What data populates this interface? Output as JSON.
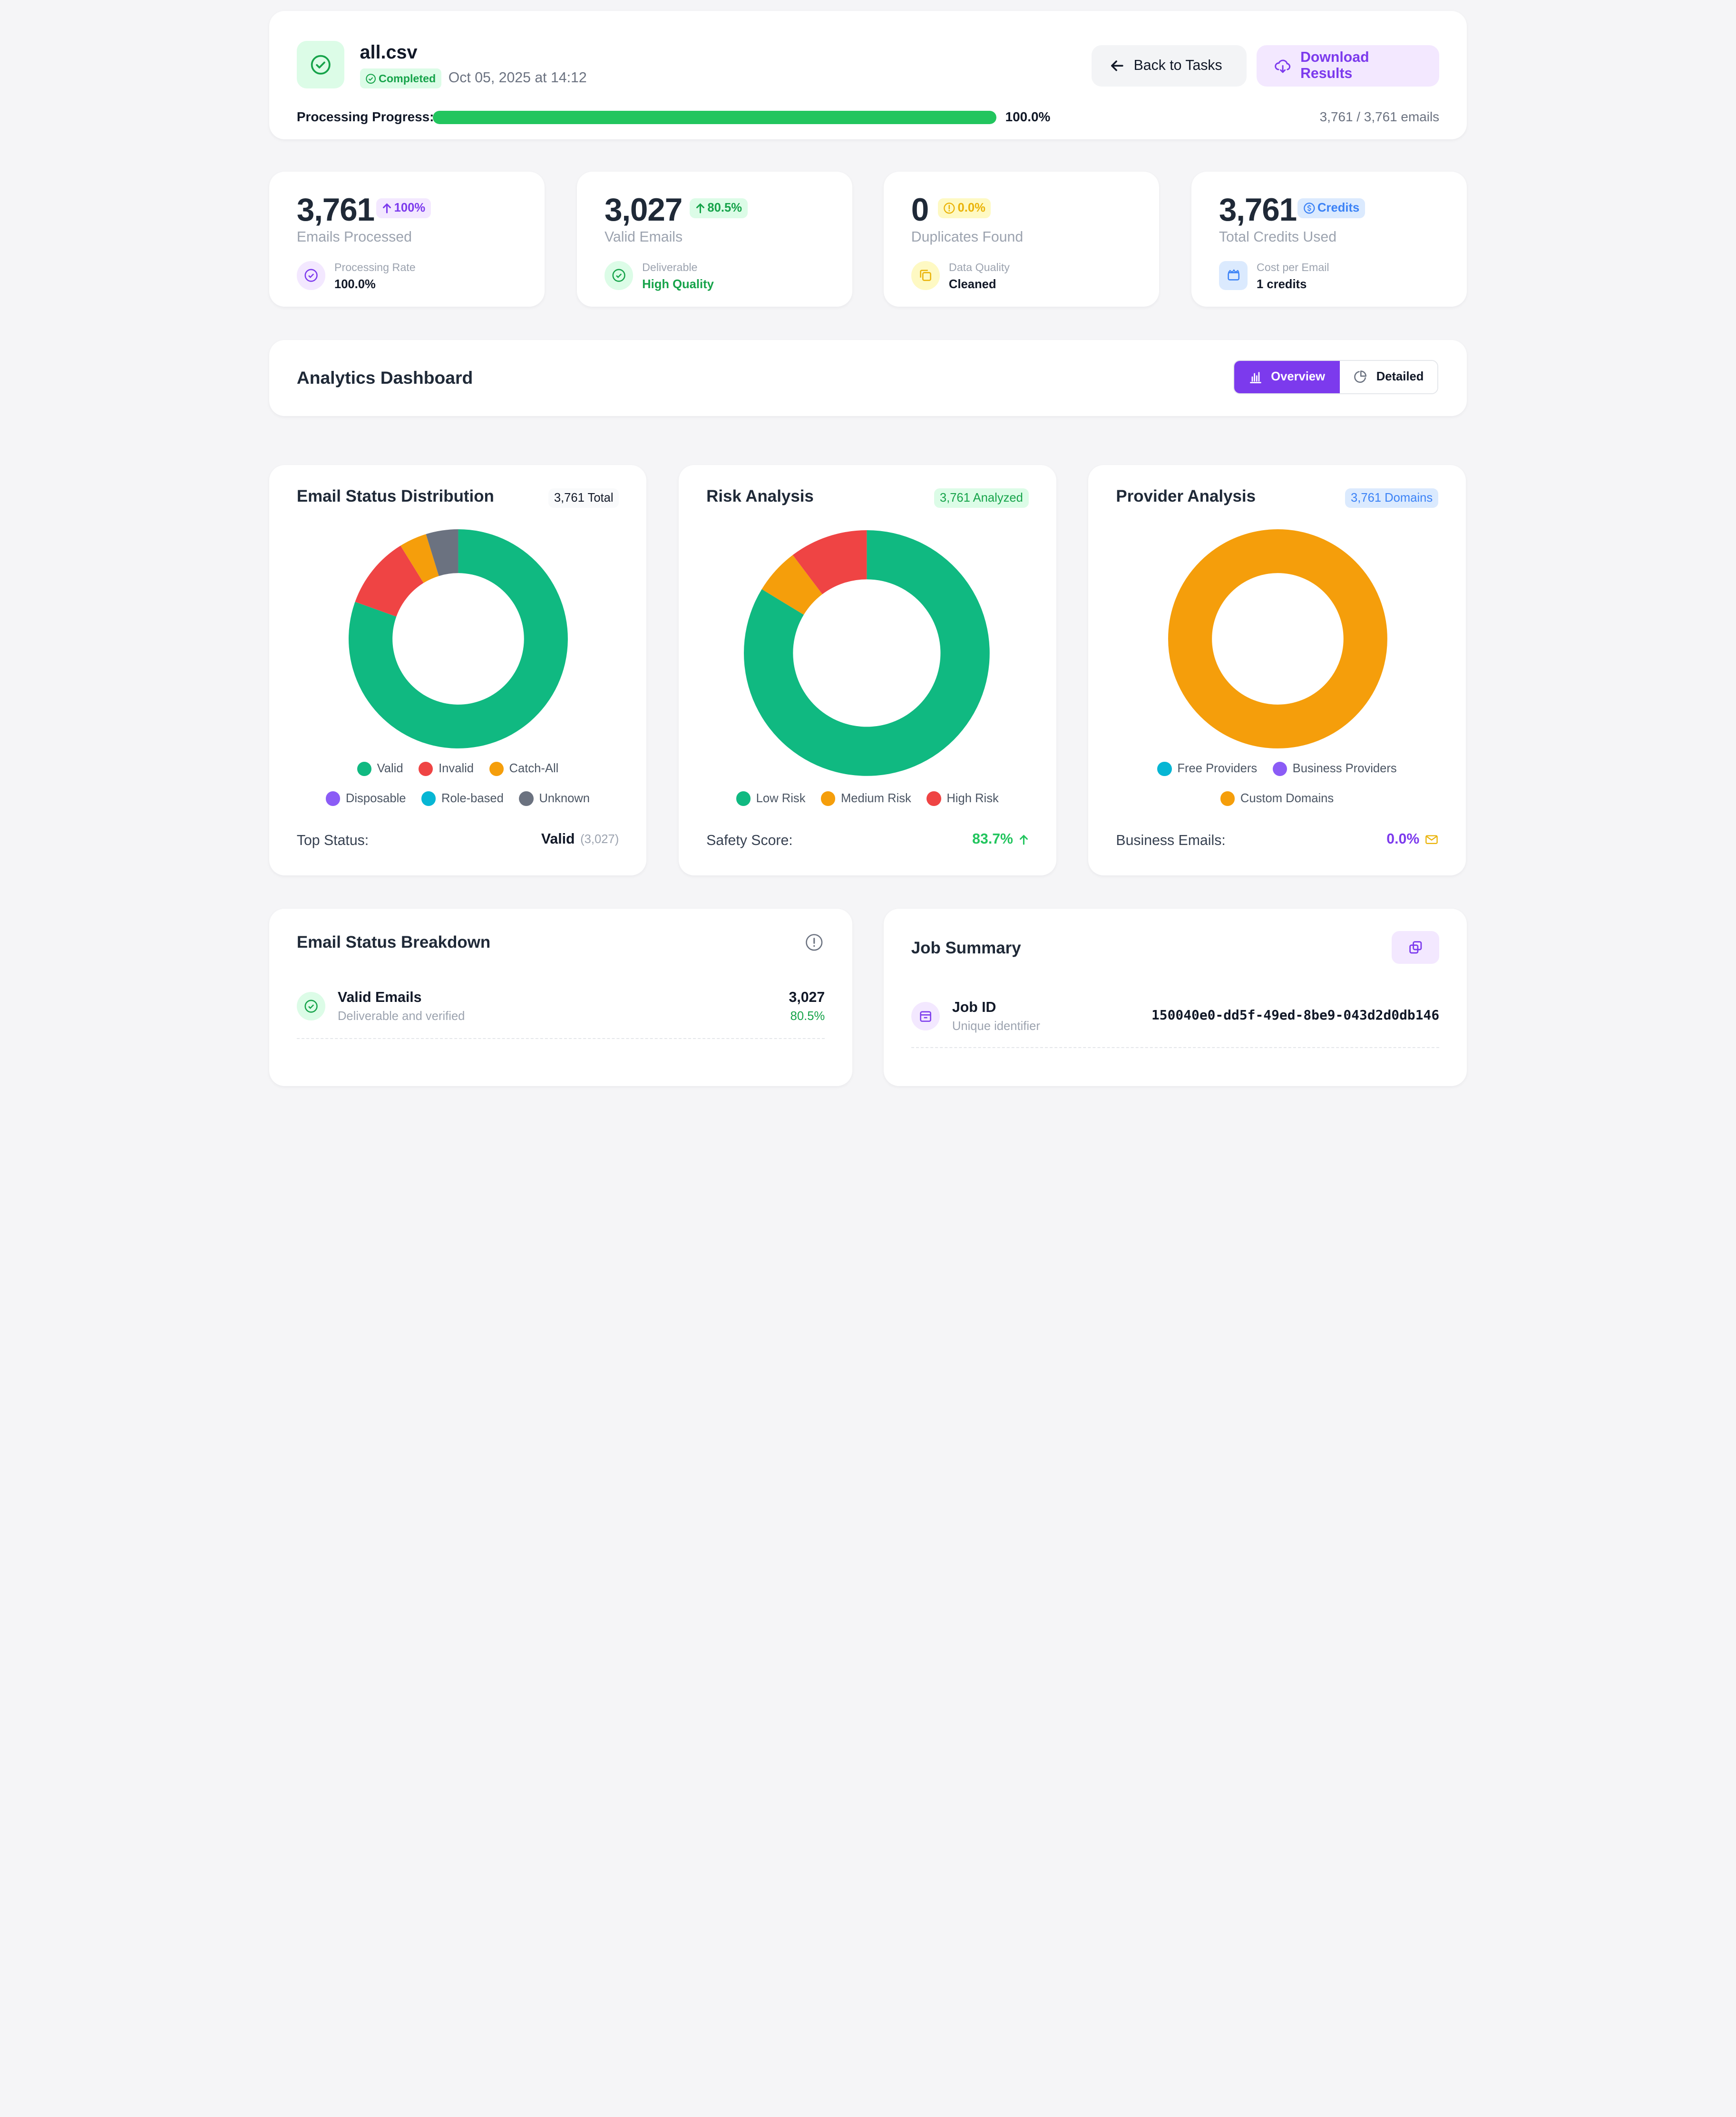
{
  "header": {
    "file_name": "all.csv",
    "status": "Completed",
    "date": "Oct 05, 2025 at 14:12",
    "back_label": "Back to Tasks",
    "download_label": "Download Results",
    "progress_label": "Processing Progress:",
    "progress": 1.0,
    "progress_text": "100.0%",
    "count_text": "3,761 / 3,761 emails"
  },
  "stats": [
    {
      "value": "3,761",
      "badge": "100%",
      "label": "Emails Processed",
      "sub_label": "Processing Rate",
      "sub_value": "100.0%"
    },
    {
      "value": "3,027",
      "badge": "80.5%",
      "label": "Valid Emails",
      "sub_label": "Deliverable",
      "sub_value": "High Quality"
    },
    {
      "value": "0",
      "badge": "0.0%",
      "label": "Duplicates Found",
      "sub_label": "Data Quality",
      "sub_value": "Cleaned"
    },
    {
      "value": "3,761",
      "badge": "Credits",
      "label": "Total Credits Used",
      "sub_label": "Cost per Email",
      "sub_value": "1 credits"
    }
  ],
  "analytics": {
    "title": "Analytics Dashboard",
    "tab_overview": "Overview",
    "tab_detailed": "Detailed"
  },
  "status_chart": {
    "title": "Email Status Distribution",
    "badge": "3,761 Total",
    "legend": [
      "Valid",
      "Invalid",
      "Catch-All",
      "Disposable",
      "Role-based",
      "Unknown"
    ],
    "footer_label": "Top Status:",
    "footer_value": "Valid",
    "footer_count": "(3,027)"
  },
  "risk_chart": {
    "title": "Risk Analysis",
    "badge": "3,761 Analyzed",
    "legend": [
      "Low Risk",
      "Medium Risk",
      "High Risk"
    ],
    "footer_label": "Safety Score:",
    "footer_value": "83.7%"
  },
  "provider_chart": {
    "title": "Provider Analysis",
    "badge": "3,761 Domains",
    "legend": [
      "Free Providers",
      "Business Providers",
      "Custom Domains"
    ],
    "footer_label": "Business Emails:",
    "footer_value": "0.0%"
  },
  "chart_data": [
    {
      "type": "pie",
      "title": "Email Status Distribution",
      "categories": [
        "Valid",
        "Invalid",
        "Catch-All",
        "Disposable",
        "Role-based",
        "Unknown"
      ],
      "values": [
        3027,
        402,
        153,
        0,
        0,
        179
      ],
      "colors": [
        "#10b981",
        "#ef4444",
        "#f59e0b",
        "#8b5cf6",
        "#06b6d4",
        "#6b7280"
      ]
    },
    {
      "type": "pie",
      "title": "Risk Analysis",
      "categories": [
        "Low Risk",
        "Medium Risk",
        "High Risk"
      ],
      "values": [
        3148,
        226,
        387
      ],
      "colors": [
        "#10b981",
        "#f59e0b",
        "#ef4444"
      ]
    },
    {
      "type": "pie",
      "title": "Provider Analysis",
      "categories": [
        "Free Providers",
        "Business Providers",
        "Custom Domains"
      ],
      "values": [
        0,
        0,
        3761
      ],
      "colors": [
        "#06b6d4",
        "#8b5cf6",
        "#f59e0b"
      ]
    }
  ],
  "breakdown": {
    "title": "Email Status Breakdown",
    "rows": [
      {
        "title": "Valid Emails",
        "sub": "Deliverable and verified",
        "count": "3,027",
        "pct": "80.5%"
      }
    ]
  },
  "job": {
    "title": "Job Summary",
    "rows": [
      {
        "title": "Job ID",
        "sub": "Unique identifier",
        "value": "150040e0-dd5f-49ed-8be9-043d2d0db146"
      }
    ]
  },
  "colors": {
    "accent": "#7c3aed",
    "success": "#22c55e",
    "valid": "#10b981",
    "invalid": "#ef4444",
    "warning": "#f59e0b"
  }
}
